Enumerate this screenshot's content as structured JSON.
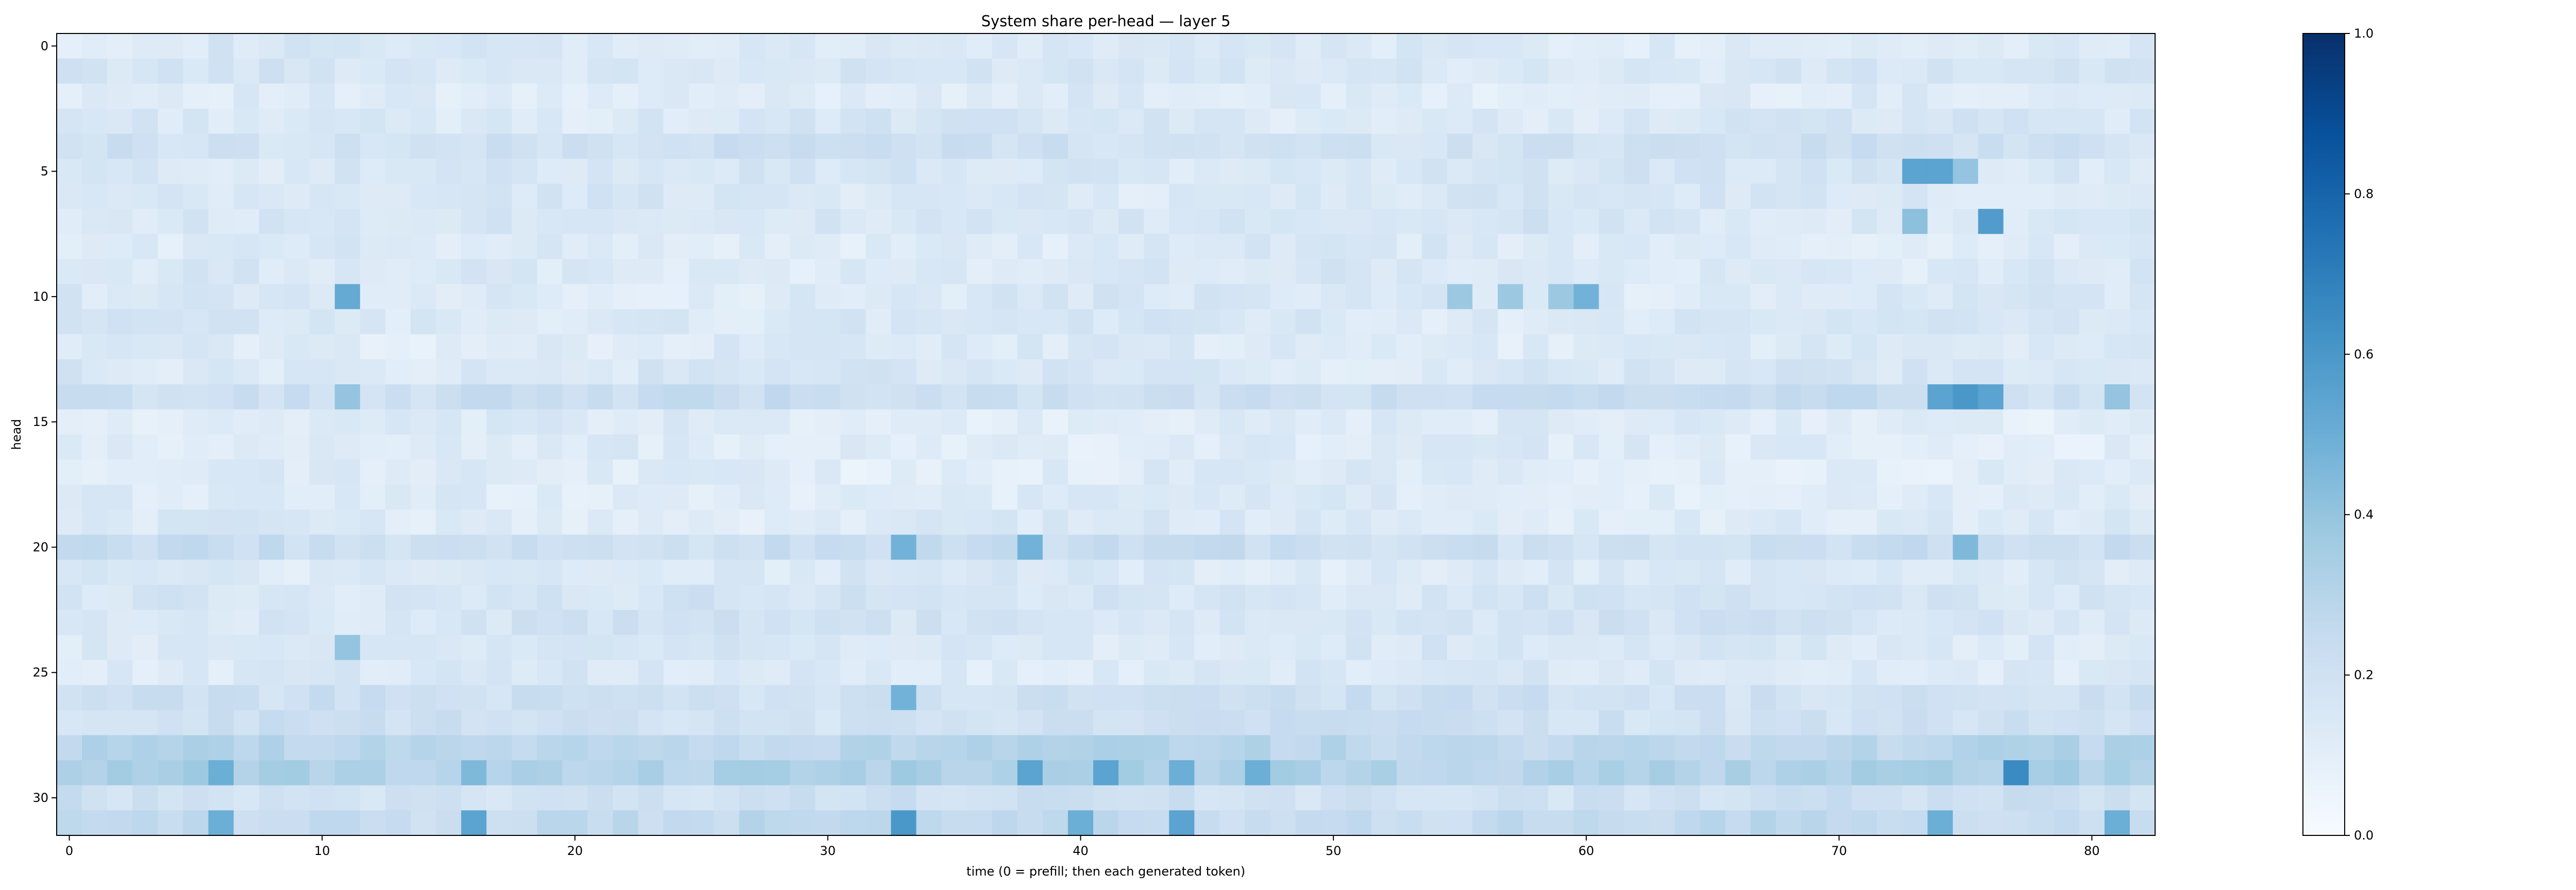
{
  "chart_data": {
    "type": "heatmap",
    "title": "System share per-head — layer 5",
    "xlabel": "time (0 = prefill; then each generated token)",
    "ylabel": "head",
    "n_cols": 83,
    "n_rows": 32,
    "x_ticks": [
      0,
      10,
      20,
      30,
      40,
      50,
      60,
      70,
      80
    ],
    "y_ticks": [
      0,
      5,
      10,
      15,
      20,
      25,
      30
    ],
    "colorbar": {
      "colormap": "Blues",
      "range": [
        0.0,
        1.0
      ],
      "ticks": [
        "0.0",
        "0.2",
        "0.4",
        "0.6",
        "0.8",
        "1.0"
      ],
      "stops": [
        "#f7fbff",
        "#deebf7",
        "#c6dbef",
        "#9ecae1",
        "#6baed6",
        "#4292c6",
        "#2171b5",
        "#08519c",
        "#08306b"
      ]
    },
    "row_base": [
      0.14,
      0.16,
      0.12,
      0.15,
      0.2,
      0.16,
      0.15,
      0.16,
      0.13,
      0.14,
      0.14,
      0.15,
      0.13,
      0.15,
      0.22,
      0.12,
      0.12,
      0.12,
      0.12,
      0.13,
      0.22,
      0.14,
      0.17,
      0.17,
      0.15,
      0.14,
      0.2,
      0.2,
      0.28,
      0.32,
      0.2,
      0.25
    ],
    "highlights": [
      {
        "row": 5,
        "col": 73,
        "value": 0.55
      },
      {
        "row": 5,
        "col": 74,
        "value": 0.55
      },
      {
        "row": 5,
        "col": 75,
        "value": 0.4
      },
      {
        "row": 7,
        "col": 73,
        "value": 0.42
      },
      {
        "row": 7,
        "col": 76,
        "value": 0.58
      },
      {
        "row": 10,
        "col": 11,
        "value": 0.52
      },
      {
        "row": 10,
        "col": 55,
        "value": 0.38
      },
      {
        "row": 10,
        "col": 57,
        "value": 0.38
      },
      {
        "row": 10,
        "col": 59,
        "value": 0.38
      },
      {
        "row": 10,
        "col": 60,
        "value": 0.48
      },
      {
        "row": 14,
        "col": 11,
        "value": 0.4
      },
      {
        "row": 14,
        "col": 74,
        "value": 0.55
      },
      {
        "row": 14,
        "col": 75,
        "value": 0.6
      },
      {
        "row": 14,
        "col": 76,
        "value": 0.55
      },
      {
        "row": 14,
        "col": 81,
        "value": 0.4
      },
      {
        "row": 20,
        "col": 33,
        "value": 0.48
      },
      {
        "row": 20,
        "col": 38,
        "value": 0.48
      },
      {
        "row": 20,
        "col": 75,
        "value": 0.45
      },
      {
        "row": 24,
        "col": 11,
        "value": 0.4
      },
      {
        "row": 26,
        "col": 33,
        "value": 0.48
      },
      {
        "row": 29,
        "col": 6,
        "value": 0.5
      },
      {
        "row": 29,
        "col": 16,
        "value": 0.45
      },
      {
        "row": 29,
        "col": 38,
        "value": 0.55
      },
      {
        "row": 29,
        "col": 41,
        "value": 0.55
      },
      {
        "row": 29,
        "col": 44,
        "value": 0.5
      },
      {
        "row": 29,
        "col": 47,
        "value": 0.5
      },
      {
        "row": 29,
        "col": 77,
        "value": 0.65
      },
      {
        "row": 31,
        "col": 6,
        "value": 0.5
      },
      {
        "row": 31,
        "col": 16,
        "value": 0.55
      },
      {
        "row": 31,
        "col": 33,
        "value": 0.6
      },
      {
        "row": 31,
        "col": 40,
        "value": 0.5
      },
      {
        "row": 31,
        "col": 44,
        "value": 0.55
      },
      {
        "row": 31,
        "col": 74,
        "value": 0.5
      },
      {
        "row": 31,
        "col": 81,
        "value": 0.5
      }
    ]
  }
}
